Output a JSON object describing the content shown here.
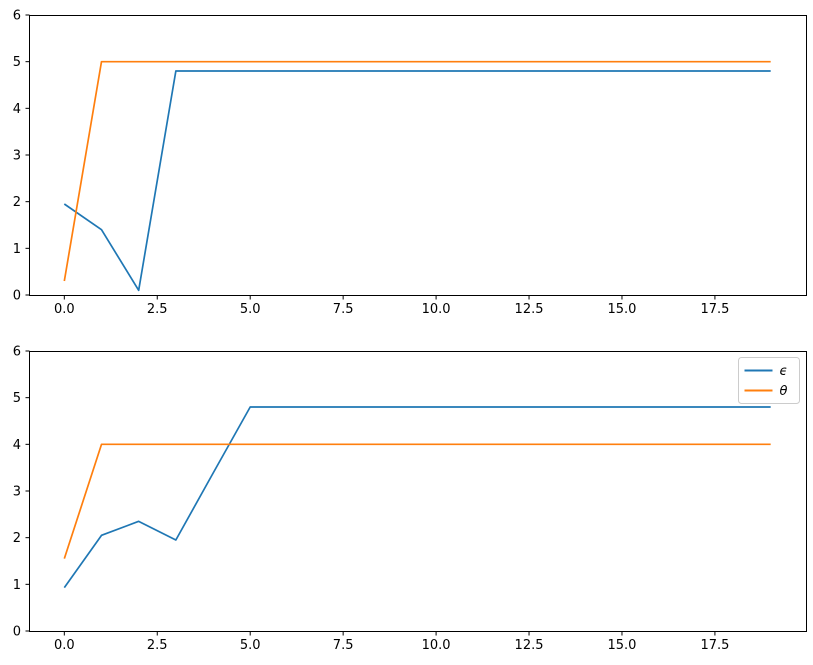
{
  "figure": {
    "background": "#ffffff",
    "frame_color": "#000000",
    "tick_color": "#000000"
  },
  "chart_data": [
    {
      "type": "line",
      "title": "",
      "xlabel": "",
      "ylabel": "",
      "grid": false,
      "legend": null,
      "xlim": [
        -0.95,
        19.95
      ],
      "ylim": [
        0,
        6
      ],
      "xticks": [
        0,
        2.5,
        5,
        7.5,
        10,
        12.5,
        15,
        17.5
      ],
      "xtick_labels": [
        "0.0",
        "2.5",
        "5.0",
        "7.5",
        "10.0",
        "12.5",
        "15.0",
        "17.5"
      ],
      "yticks": [
        0,
        1,
        2,
        3,
        4,
        5,
        6
      ],
      "ytick_labels": [
        "0",
        "1",
        "2",
        "3",
        "4",
        "5",
        "6"
      ],
      "x": [
        0,
        1,
        2,
        3,
        4,
        5,
        6,
        7,
        8,
        9,
        10,
        11,
        12,
        13,
        14,
        15,
        16,
        17,
        18,
        19
      ],
      "series": [
        {
          "key": "epsilon",
          "name": "ϵ",
          "color": "#1f77b4",
          "values": [
            1.95,
            1.4,
            0.1,
            4.8,
            4.8,
            4.8,
            4.8,
            4.8,
            4.8,
            4.8,
            4.8,
            4.8,
            4.8,
            4.8,
            4.8,
            4.8,
            4.8,
            4.8,
            4.8,
            4.8
          ]
        },
        {
          "key": "theta",
          "name": "θ",
          "color": "#ff7f0e",
          "values": [
            0.3,
            5,
            5,
            5,
            5,
            5,
            5,
            5,
            5,
            5,
            5,
            5,
            5,
            5,
            5,
            5,
            5,
            5,
            5,
            5
          ]
        }
      ]
    },
    {
      "type": "line",
      "title": "",
      "xlabel": "",
      "ylabel": "",
      "grid": false,
      "legend": {
        "position": "upper right",
        "entries": [
          {
            "key": "epsilon",
            "label": "ϵ",
            "color": "#1f77b4"
          },
          {
            "key": "theta",
            "label": "θ",
            "color": "#ff7f0e"
          }
        ]
      },
      "xlim": [
        -0.95,
        19.95
      ],
      "ylim": [
        0,
        6
      ],
      "xticks": [
        0,
        2.5,
        5,
        7.5,
        10,
        12.5,
        15,
        17.5
      ],
      "xtick_labels": [
        "0.0",
        "2.5",
        "5.0",
        "7.5",
        "10.0",
        "12.5",
        "15.0",
        "17.5"
      ],
      "yticks": [
        0,
        1,
        2,
        3,
        4,
        5,
        6
      ],
      "ytick_labels": [
        "0",
        "1",
        "2",
        "3",
        "4",
        "5",
        "6"
      ],
      "x": [
        0,
        1,
        2,
        3,
        4,
        5,
        6,
        7,
        8,
        9,
        10,
        11,
        12,
        13,
        14,
        15,
        16,
        17,
        18,
        19
      ],
      "series": [
        {
          "key": "epsilon",
          "name": "ϵ",
          "color": "#1f77b4",
          "values": [
            0.93,
            2.05,
            2.35,
            1.95,
            3.38,
            4.8,
            4.8,
            4.8,
            4.8,
            4.8,
            4.8,
            4.8,
            4.8,
            4.8,
            4.8,
            4.8,
            4.8,
            4.8,
            4.8,
            4.8
          ]
        },
        {
          "key": "theta",
          "name": "θ",
          "color": "#ff7f0e",
          "values": [
            1.55,
            4,
            4,
            4,
            4,
            4,
            4,
            4,
            4,
            4,
            4,
            4,
            4,
            4,
            4,
            4,
            4,
            4,
            4,
            4
          ]
        }
      ]
    }
  ]
}
